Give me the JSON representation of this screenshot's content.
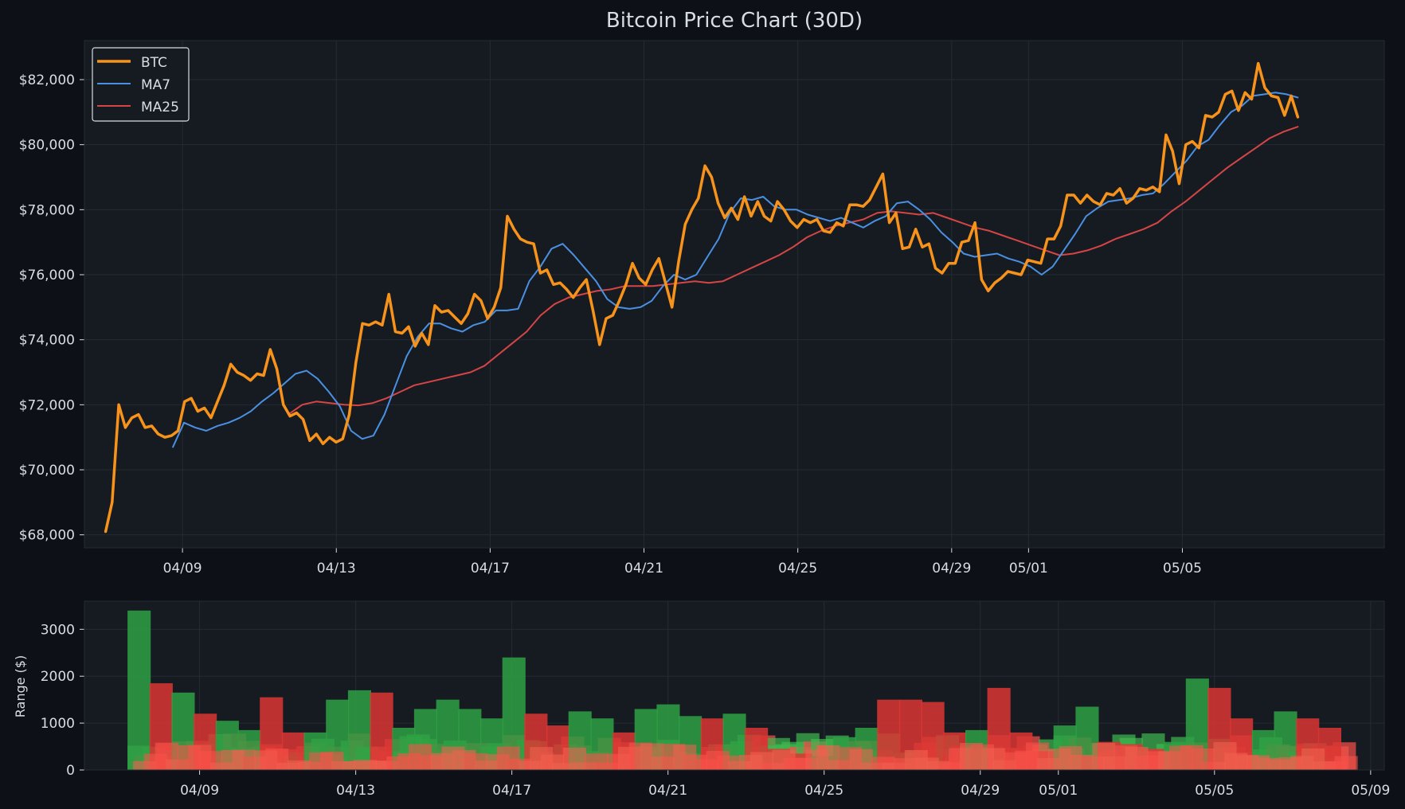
{
  "chart_data": [
    {
      "type": "line",
      "title": "Bitcoin Price Chart (30D)",
      "xlabel": "",
      "ylabel": "",
      "x_start": "04/07",
      "x_end": "05/08",
      "xlim": [
        "04/07",
        "05/10"
      ],
      "x_ticks": [
        "04/09",
        "04/13",
        "04/17",
        "04/21",
        "04/25",
        "04/29",
        "05/01",
        "05/05"
      ],
      "ylim": [
        67600,
        83200
      ],
      "y_ticks": [
        68000,
        70000,
        72000,
        74000,
        76000,
        78000,
        80000,
        82000
      ],
      "y_tick_labels": [
        "$68,000",
        "$70,000",
        "$72,000",
        "$74,000",
        "$76,000",
        "$78,000",
        "$80,000",
        "$82,000"
      ],
      "grid": true,
      "legend": "top-left",
      "series": [
        {
          "name": "BTC",
          "color": "#f7931a",
          "values": [
            68100,
            69000,
            72000,
            71300,
            71600,
            71700,
            71300,
            71350,
            71100,
            71000,
            71050,
            71200,
            72100,
            72200,
            71800,
            71900,
            71600,
            72100,
            72600,
            73250,
            73000,
            72900,
            72750,
            72950,
            72900,
            73700,
            73100,
            72000,
            71650,
            71750,
            71550,
            70900,
            71100,
            70800,
            71000,
            70850,
            70950,
            71700,
            73300,
            74500,
            74450,
            74550,
            74450,
            75400,
            74250,
            74200,
            74400,
            73800,
            74200,
            73850,
            75050,
            74850,
            74900,
            74700,
            74500,
            74800,
            75400,
            75200,
            74650,
            75000,
            75600,
            77800,
            77400,
            77100,
            77000,
            76950,
            76050,
            76150,
            75700,
            75750,
            75550,
            75300,
            75600,
            75850,
            74900,
            73850,
            74650,
            74750,
            75200,
            75700,
            76350,
            75900,
            75700,
            76150,
            76500,
            75750,
            75000,
            76400,
            77550,
            78000,
            78350,
            79350,
            79000,
            78200,
            77750,
            78050,
            77700,
            78400,
            77800,
            78250,
            77800,
            77650,
            78250,
            78000,
            77650,
            77450,
            77700,
            77600,
            77700,
            77350,
            77300,
            77600,
            77500,
            78150,
            78150,
            78100,
            78300,
            78700,
            79100,
            77600,
            77900,
            76800,
            76850,
            77400,
            76850,
            76950,
            76200,
            76050,
            76350,
            76350,
            77000,
            77050,
            77600,
            75850,
            75500,
            75750,
            75900,
            76100,
            76050,
            76000,
            76450,
            76400,
            76350,
            77100,
            77100,
            77500,
            78450,
            78450,
            78200,
            78450,
            78250,
            78150,
            78500,
            78450,
            78650,
            78200,
            78350,
            78650,
            78600,
            78700,
            78550,
            80300,
            79800,
            78800,
            80000,
            80100,
            79900,
            80900,
            80850,
            81000,
            81550,
            81650,
            81050,
            81600,
            81400,
            82500,
            81750,
            81500,
            81450,
            80900,
            81500,
            80850
          ],
          "tooltip_last": "80850"
        },
        {
          "name": "MA7",
          "color": "#4a90e2",
          "start": "04/08 18:00",
          "values": [
            70700,
            71450,
            71300,
            71200,
            71350,
            71450,
            71600,
            71800,
            72100,
            72350,
            72650,
            72950,
            73050,
            72800,
            72400,
            71950,
            71200,
            70950,
            71050,
            71700,
            72600,
            73500,
            74100,
            74500,
            74500,
            74350,
            74250,
            74450,
            74550,
            74900,
            74900,
            74950,
            75800,
            76250,
            76800,
            76950,
            76600,
            76200,
            75800,
            75250,
            75000,
            74950,
            75000,
            75200,
            75650,
            76000,
            75850,
            76000,
            76550,
            77100,
            77900,
            78350,
            78300,
            78400,
            78100,
            78000,
            78000,
            77850,
            77750,
            77650,
            77750,
            77600,
            77450,
            77650,
            77800,
            78200,
            78250,
            78000,
            77700,
            77300,
            77000,
            76650,
            76550,
            76600,
            76650,
            76500,
            76400,
            76250,
            76000,
            76250,
            76750,
            77250,
            77800,
            78050,
            78250,
            78300,
            78350,
            78450,
            78500,
            78800,
            79150,
            79500,
            79950,
            80150,
            80600,
            81000,
            81200,
            81500,
            81550,
            81600,
            81550,
            81450
          ]
        },
        {
          "name": "MA25",
          "color": "#d64545",
          "start": "04/11 18:00",
          "values": [
            71700,
            72000,
            72100,
            72050,
            72000,
            71980,
            72050,
            72200,
            72400,
            72600,
            72700,
            72800,
            72900,
            73000,
            73200,
            73550,
            73900,
            74250,
            74750,
            75100,
            75300,
            75400,
            75500,
            75550,
            75650,
            75650,
            75650,
            75700,
            75750,
            75800,
            75750,
            75800,
            76000,
            76200,
            76400,
            76600,
            76850,
            77150,
            77350,
            77500,
            77600,
            77700,
            77900,
            77950,
            77900,
            77850,
            77900,
            77750,
            77600,
            77450,
            77350,
            77200,
            77050,
            76900,
            76750,
            76600,
            76650,
            76750,
            76900,
            77100,
            77250,
            77400,
            77600,
            77950,
            78250,
            78600,
            78950,
            79300,
            79600,
            79900,
            80200,
            80400,
            80550
          ]
        }
      ]
    },
    {
      "type": "bar",
      "title": "",
      "xlabel": "",
      "ylabel": "Range ($)",
      "ylim": [
        0,
        3600
      ],
      "y_ticks": [
        0,
        1000,
        2000,
        3000
      ],
      "x_ticks": [
        "04/09",
        "04/13",
        "04/17",
        "04/21",
        "04/25",
        "04/29",
        "05/01",
        "05/05",
        "05/09"
      ],
      "grid": true,
      "up_color": "#2ea043",
      "down_color": "#da3633",
      "values": [
        3400,
        1850,
        1650,
        1200,
        1050,
        850,
        1550,
        800,
        800,
        1500,
        1700,
        1650,
        900,
        1300,
        1500,
        1300,
        1100,
        2400,
        1200,
        950,
        1250,
        1100,
        800,
        1300,
        1400,
        1150,
        1100,
        1200,
        900,
        450,
        350,
        300,
        700,
        900,
        1500,
        1500,
        1450,
        800,
        850,
        1750,
        800,
        400,
        950,
        1350,
        600,
        550,
        450,
        600,
        1950,
        1750,
        1100,
        850,
        1250,
        1100,
        900
      ],
      "direction": [
        "up",
        "down",
        "up",
        "down",
        "up",
        "up",
        "down",
        "down",
        "up",
        "up",
        "up",
        "down",
        "up",
        "up",
        "up",
        "up",
        "up",
        "up",
        "down",
        "down",
        "up",
        "up",
        "down",
        "up",
        "up",
        "up",
        "down",
        "up",
        "down",
        "down",
        "down",
        "up",
        "up",
        "up",
        "down",
        "down",
        "down",
        "down",
        "up",
        "down",
        "down",
        "down",
        "up",
        "up",
        "down",
        "down",
        "down",
        "up",
        "up",
        "down",
        "down",
        "up",
        "up",
        "down",
        "down"
      ]
    }
  ]
}
